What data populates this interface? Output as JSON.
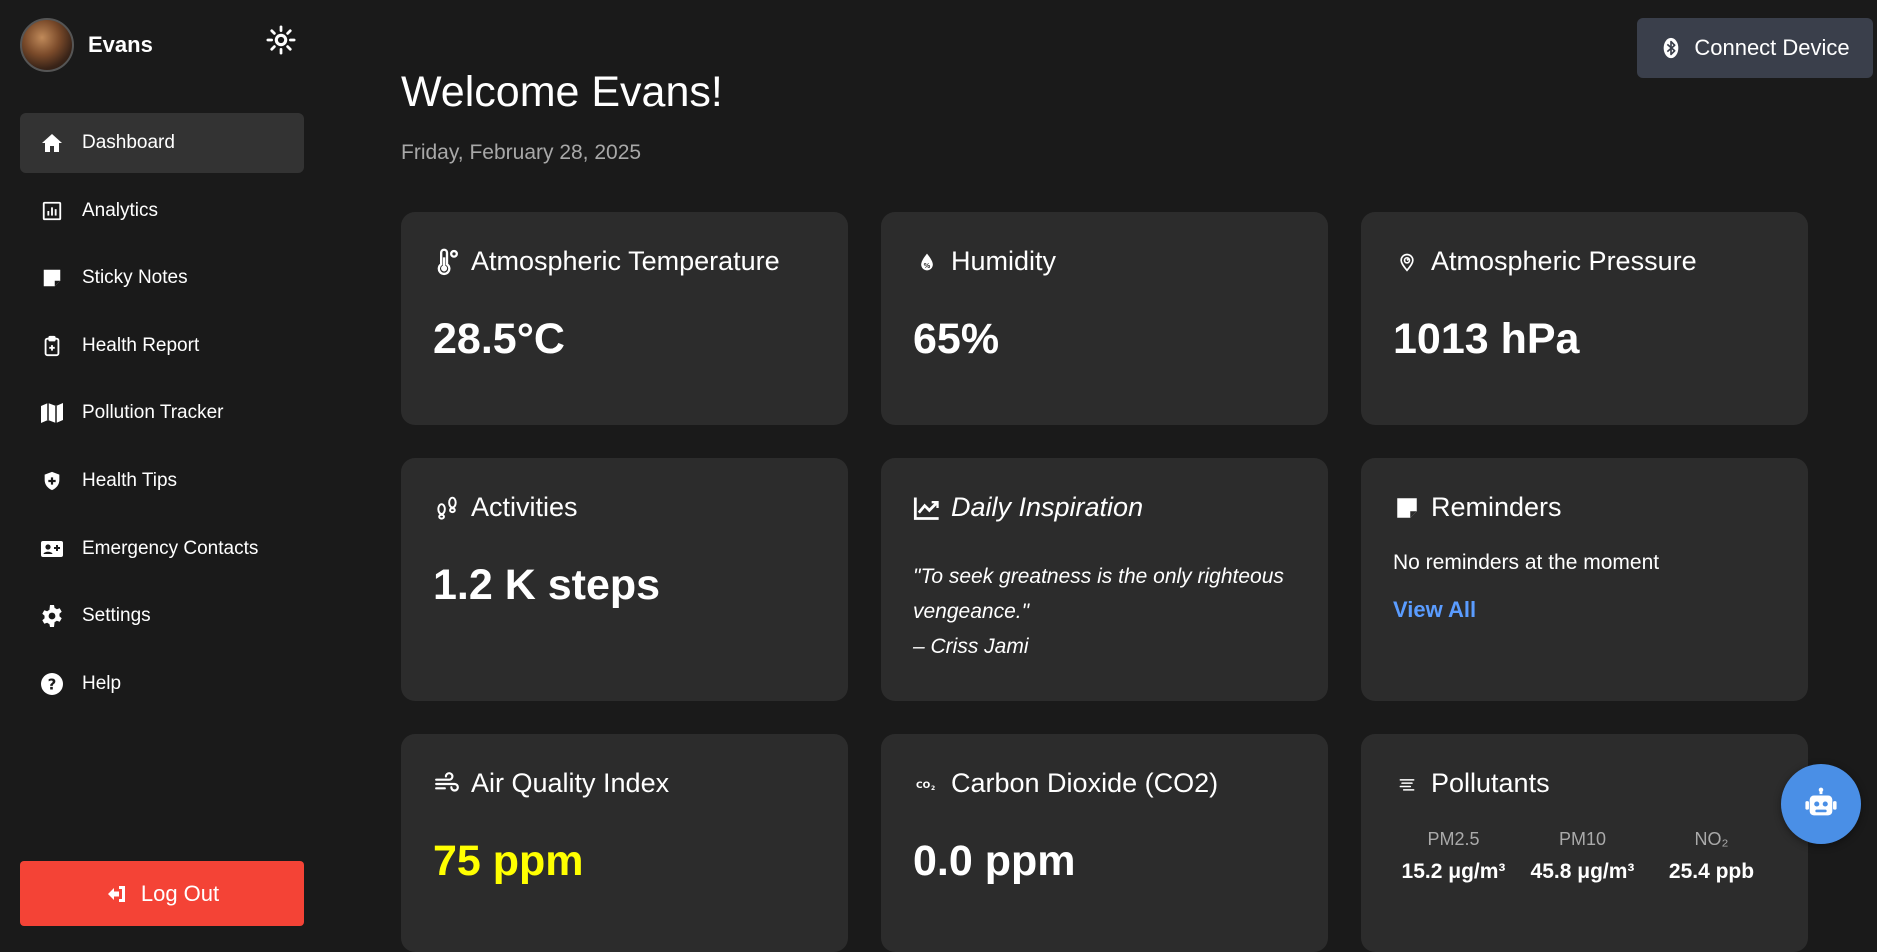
{
  "user": {
    "name": "Evans"
  },
  "sidebar": {
    "items": [
      {
        "label": "Dashboard",
        "icon": "home-icon",
        "active": true
      },
      {
        "label": "Analytics",
        "icon": "chart-icon"
      },
      {
        "label": "Sticky Notes",
        "icon": "sticky-note-icon"
      },
      {
        "label": "Health Report",
        "icon": "clipboard-icon"
      },
      {
        "label": "Pollution Tracker",
        "icon": "map-icon"
      },
      {
        "label": "Health Tips",
        "icon": "shield-icon"
      },
      {
        "label": "Emergency Contacts",
        "icon": "contact-card-icon"
      },
      {
        "label": "Settings",
        "icon": "gear-icon"
      },
      {
        "label": "Help",
        "icon": "help-icon"
      }
    ],
    "logout_label": "Log Out"
  },
  "header": {
    "connect_label": "Connect Device",
    "welcome": "Welcome Evans!",
    "date": "Friday, February 28, 2025"
  },
  "cards": {
    "temperature": {
      "title": "Atmospheric Temperature",
      "value": "28.5°C"
    },
    "humidity": {
      "title": "Humidity",
      "value": "65%"
    },
    "pressure": {
      "title": "Atmospheric Pressure",
      "value": "1013 hPa"
    },
    "activities": {
      "title": "Activities",
      "value": "1.2 K steps"
    },
    "inspiration": {
      "title": "Daily Inspiration",
      "quote": "\"To seek greatness is the only righteous vengeance.\"",
      "author": "– Criss Jami"
    },
    "reminders": {
      "title": "Reminders",
      "text": "No reminders at the moment",
      "link": "View All"
    },
    "aqi": {
      "title": "Air Quality Index",
      "value": "75 ppm"
    },
    "co2": {
      "title": "Carbon Dioxide (CO2)",
      "value": "0.0 ppm"
    },
    "pollutants": {
      "title": "Pollutants",
      "items": [
        {
          "label": "PM2.5",
          "value": "15.2 μg/m³"
        },
        {
          "label": "PM10",
          "value": "45.8 μg/m³"
        },
        {
          "label": "NO₂",
          "value": "25.4 ppb"
        }
      ]
    }
  },
  "colors": {
    "background": "#1a1a1a",
    "card": "#2c2c2c",
    "active_nav": "#333333",
    "logout": "#f44336",
    "link": "#5a9cff",
    "aqi_value": "#ffff00",
    "chatbot": "#4a8fe6"
  }
}
